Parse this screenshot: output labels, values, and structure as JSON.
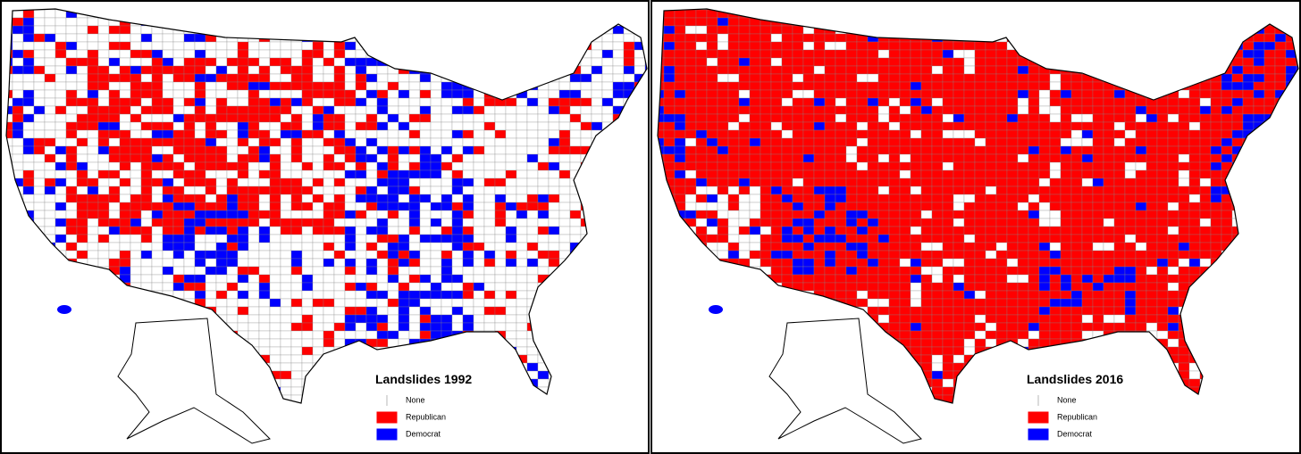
{
  "panels": [
    {
      "legend": {
        "title": "Landslides 1992",
        "items": [
          {
            "label": "None",
            "color": "#ffffff"
          },
          {
            "label": "Republican",
            "color": "#ff0000"
          },
          {
            "label": "Democrat",
            "color": "#0000ff"
          }
        ]
      }
    },
    {
      "legend": {
        "title": "Landslides 2016",
        "items": [
          {
            "label": "None",
            "color": "#ffffff"
          },
          {
            "label": "Republican",
            "color": "#ff0000"
          },
          {
            "label": "Democrat",
            "color": "#0000ff"
          }
        ]
      }
    }
  ]
}
